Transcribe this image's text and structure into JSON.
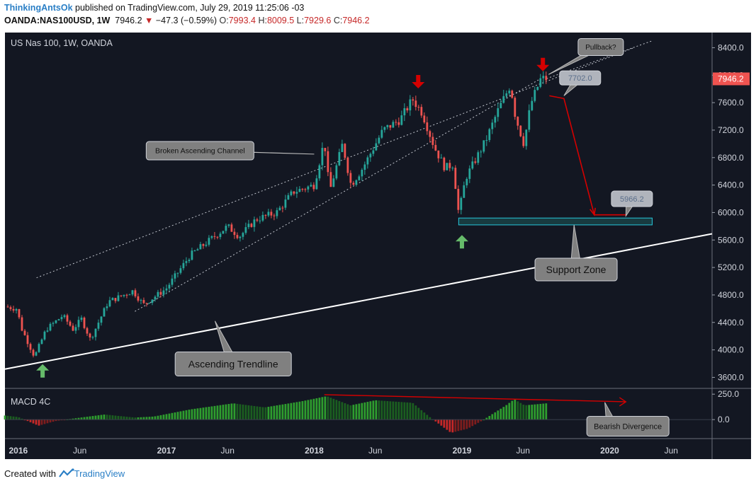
{
  "header": {
    "author": "ThinkingAntsOk",
    "published": "published on TradingView.com, July 29, 2019 11:25:06 -03",
    "symbol": "OANDA:NAS100USD, 1W",
    "last": "7946.2",
    "change": "−47.3 (−0.59%)",
    "o_label": "O:",
    "o_value": "7993.4",
    "h_label": "H:",
    "h_value": "8009.5",
    "l_label": "L:",
    "l_value": "7929.6",
    "c_label": "C:",
    "c_value": "7946.2"
  },
  "footer": {
    "created_with": "Created with",
    "brand": "TradingView"
  },
  "colors": {
    "background": "#131722",
    "up": "#26a69a",
    "down": "#ef5350",
    "trendline": "#ffffff",
    "support_zone": "#26c6da",
    "arrow_red": "#d50000",
    "arrow_green": "#66bb6a",
    "price_tag": "#ef5350",
    "callout": "#808080"
  },
  "chart_data": {
    "type": "candlestick",
    "title": "US Nas 100, 1W, OANDA",
    "y_ticks": [
      "8400.0",
      "8000.0",
      "7600.0",
      "7200.0",
      "6800.0",
      "6400.0",
      "6000.0",
      "5600.0",
      "5200.0",
      "4800.0",
      "4400.0",
      "4000.0",
      "3600.0"
    ],
    "ylim": [
      3450,
      8600
    ],
    "x_ticks": [
      "2016",
      "Jun",
      "2017",
      "Jun",
      "2018",
      "Jun",
      "2019",
      "Jun",
      "2020",
      "Jun"
    ],
    "x_tick_dates": [
      "2016-01-01",
      "2016-06-01",
      "2017-01-01",
      "2017-06-01",
      "2018-01-01",
      "2018-06-01",
      "2019-01-01",
      "2019-06-01",
      "2020-01-01",
      "2020-06-01"
    ],
    "xlim": [
      "2015-11-29",
      "2020-09-10"
    ],
    "price_path": [
      [
        "2015-11-29",
        4630
      ],
      [
        "2015-12-28",
        4600
      ],
      [
        "2016-01-10",
        4300
      ],
      [
        "2016-02-10",
        3900
      ],
      [
        "2016-03-10",
        4300
      ],
      [
        "2016-04-20",
        4500
      ],
      [
        "2016-05-15",
        4300
      ],
      [
        "2016-06-05",
        4450
      ],
      [
        "2016-06-27",
        4150
      ],
      [
        "2016-08-10",
        4700
      ],
      [
        "2016-10-10",
        4860
      ],
      [
        "2016-11-05",
        4660
      ],
      [
        "2016-12-31",
        4890
      ],
      [
        "2017-03-01",
        5380
      ],
      [
        "2017-06-01",
        5800
      ],
      [
        "2017-06-30",
        5650
      ],
      [
        "2017-08-10",
        5900
      ],
      [
        "2017-09-30",
        6000
      ],
      [
        "2017-11-10",
        6300
      ],
      [
        "2018-01-01",
        6400
      ],
      [
        "2018-01-26",
        7050
      ],
      [
        "2018-02-08",
        6300
      ],
      [
        "2018-03-12",
        7000
      ],
      [
        "2018-04-02",
        6400
      ],
      [
        "2018-05-01",
        6650
      ],
      [
        "2018-06-20",
        7200
      ],
      [
        "2018-08-01",
        7350
      ],
      [
        "2018-09-01",
        7650
      ],
      [
        "2018-09-25",
        7450
      ],
      [
        "2018-10-25",
        6950
      ],
      [
        "2018-11-20",
        6650
      ],
      [
        "2018-12-10",
        6700
      ],
      [
        "2018-12-24",
        5980
      ],
      [
        "2019-01-10",
        6500
      ],
      [
        "2019-03-01",
        7050
      ],
      [
        "2019-04-01",
        7500
      ],
      [
        "2019-05-01",
        7860
      ],
      [
        "2019-05-13",
        7400
      ],
      [
        "2019-06-03",
        7000
      ],
      [
        "2019-06-20",
        7580
      ],
      [
        "2019-07-15",
        7950
      ],
      [
        "2019-07-29",
        7946
      ]
    ],
    "last_price": "7946.2",
    "projection_path": [
      [
        "2019-08-05",
        7700
      ],
      [
        "2019-09-10",
        7660
      ],
      [
        "2019-11-24",
        5966.2
      ],
      [
        "2020-02-10",
        5966.2
      ]
    ],
    "support_zone": {
      "from": "2018-12-24",
      "to": "2020-04-15",
      "low": 5820,
      "high": 5920
    },
    "trendline": {
      "from": [
        "2015-11-29",
        3720
      ],
      "to": [
        "2020-09-10",
        5690
      ]
    },
    "channel_upper": {
      "from": [
        "2016-02-15",
        5050
      ],
      "to": [
        "2020-03-01",
        8400
      ]
    },
    "channel_lower": {
      "from": [
        "2016-10-15",
        4560
      ],
      "to": [
        "2019-07-15",
        7950
      ]
    },
    "pullback_line": {
      "from": [
        "2019-07-29",
        7950
      ],
      "to": [
        "2020-04-15",
        8500
      ]
    },
    "arrows_down": [
      [
        "2018-09-15",
        7900
      ],
      [
        "2019-07-20",
        8150
      ]
    ],
    "arrows_up": [
      [
        "2016-03-01",
        3700
      ],
      [
        "2019-01-01",
        5580
      ]
    ],
    "callouts": [
      {
        "text": "Pullback?",
        "at": [
          "2019-12-10",
          8410
        ]
      },
      {
        "text": "7702.0",
        "at": [
          "2019-10-20",
          7960
        ]
      },
      {
        "text": "Broken Ascending Channel",
        "at": [
          "2017-03-25",
          6900
        ]
      },
      {
        "text": "5966.2",
        "at": [
          "2020-02-25",
          6200
        ]
      },
      {
        "text": "Support Zone",
        "at": [
          "2019-10-10",
          5170
        ]
      },
      {
        "text": "Ascending Trendline",
        "at": [
          "2017-06-15",
          3795
        ]
      }
    ],
    "macd": {
      "title": "MACD 4C",
      "y_ticks": [
        "250.0",
        "0.0"
      ],
      "ylim": [
        -180,
        300
      ],
      "histogram_path": [
        [
          "2015-11-29",
          40
        ],
        [
          "2016-01-01",
          25
        ],
        [
          "2016-02-20",
          -60
        ],
        [
          "2016-04-01",
          -15
        ],
        [
          "2016-05-15",
          10
        ],
        [
          "2016-08-01",
          50
        ],
        [
          "2016-10-15",
          20
        ],
        [
          "2016-12-01",
          30
        ],
        [
          "2017-03-01",
          100
        ],
        [
          "2017-06-15",
          160
        ],
        [
          "2017-09-01",
          120
        ],
        [
          "2017-12-01",
          180
        ],
        [
          "2018-02-01",
          230
        ],
        [
          "2018-04-01",
          140
        ],
        [
          "2018-06-01",
          190
        ],
        [
          "2018-09-01",
          165
        ],
        [
          "2018-10-15",
          20
        ],
        [
          "2018-12-05",
          -130
        ],
        [
          "2019-01-15",
          -90
        ],
        [
          "2019-02-20",
          -10
        ],
        [
          "2019-04-20",
          140
        ],
        [
          "2019-05-10",
          200
        ],
        [
          "2019-06-05",
          140
        ],
        [
          "2019-07-29",
          160
        ]
      ],
      "divergence_line": {
        "from": [
          "2018-01-26",
          245
        ],
        "to": [
          "2020-02-10",
          175
        ]
      },
      "callout": {
        "text": "Bearish Divergence",
        "at": [
          "2020-02-15",
          -65
        ]
      }
    }
  }
}
